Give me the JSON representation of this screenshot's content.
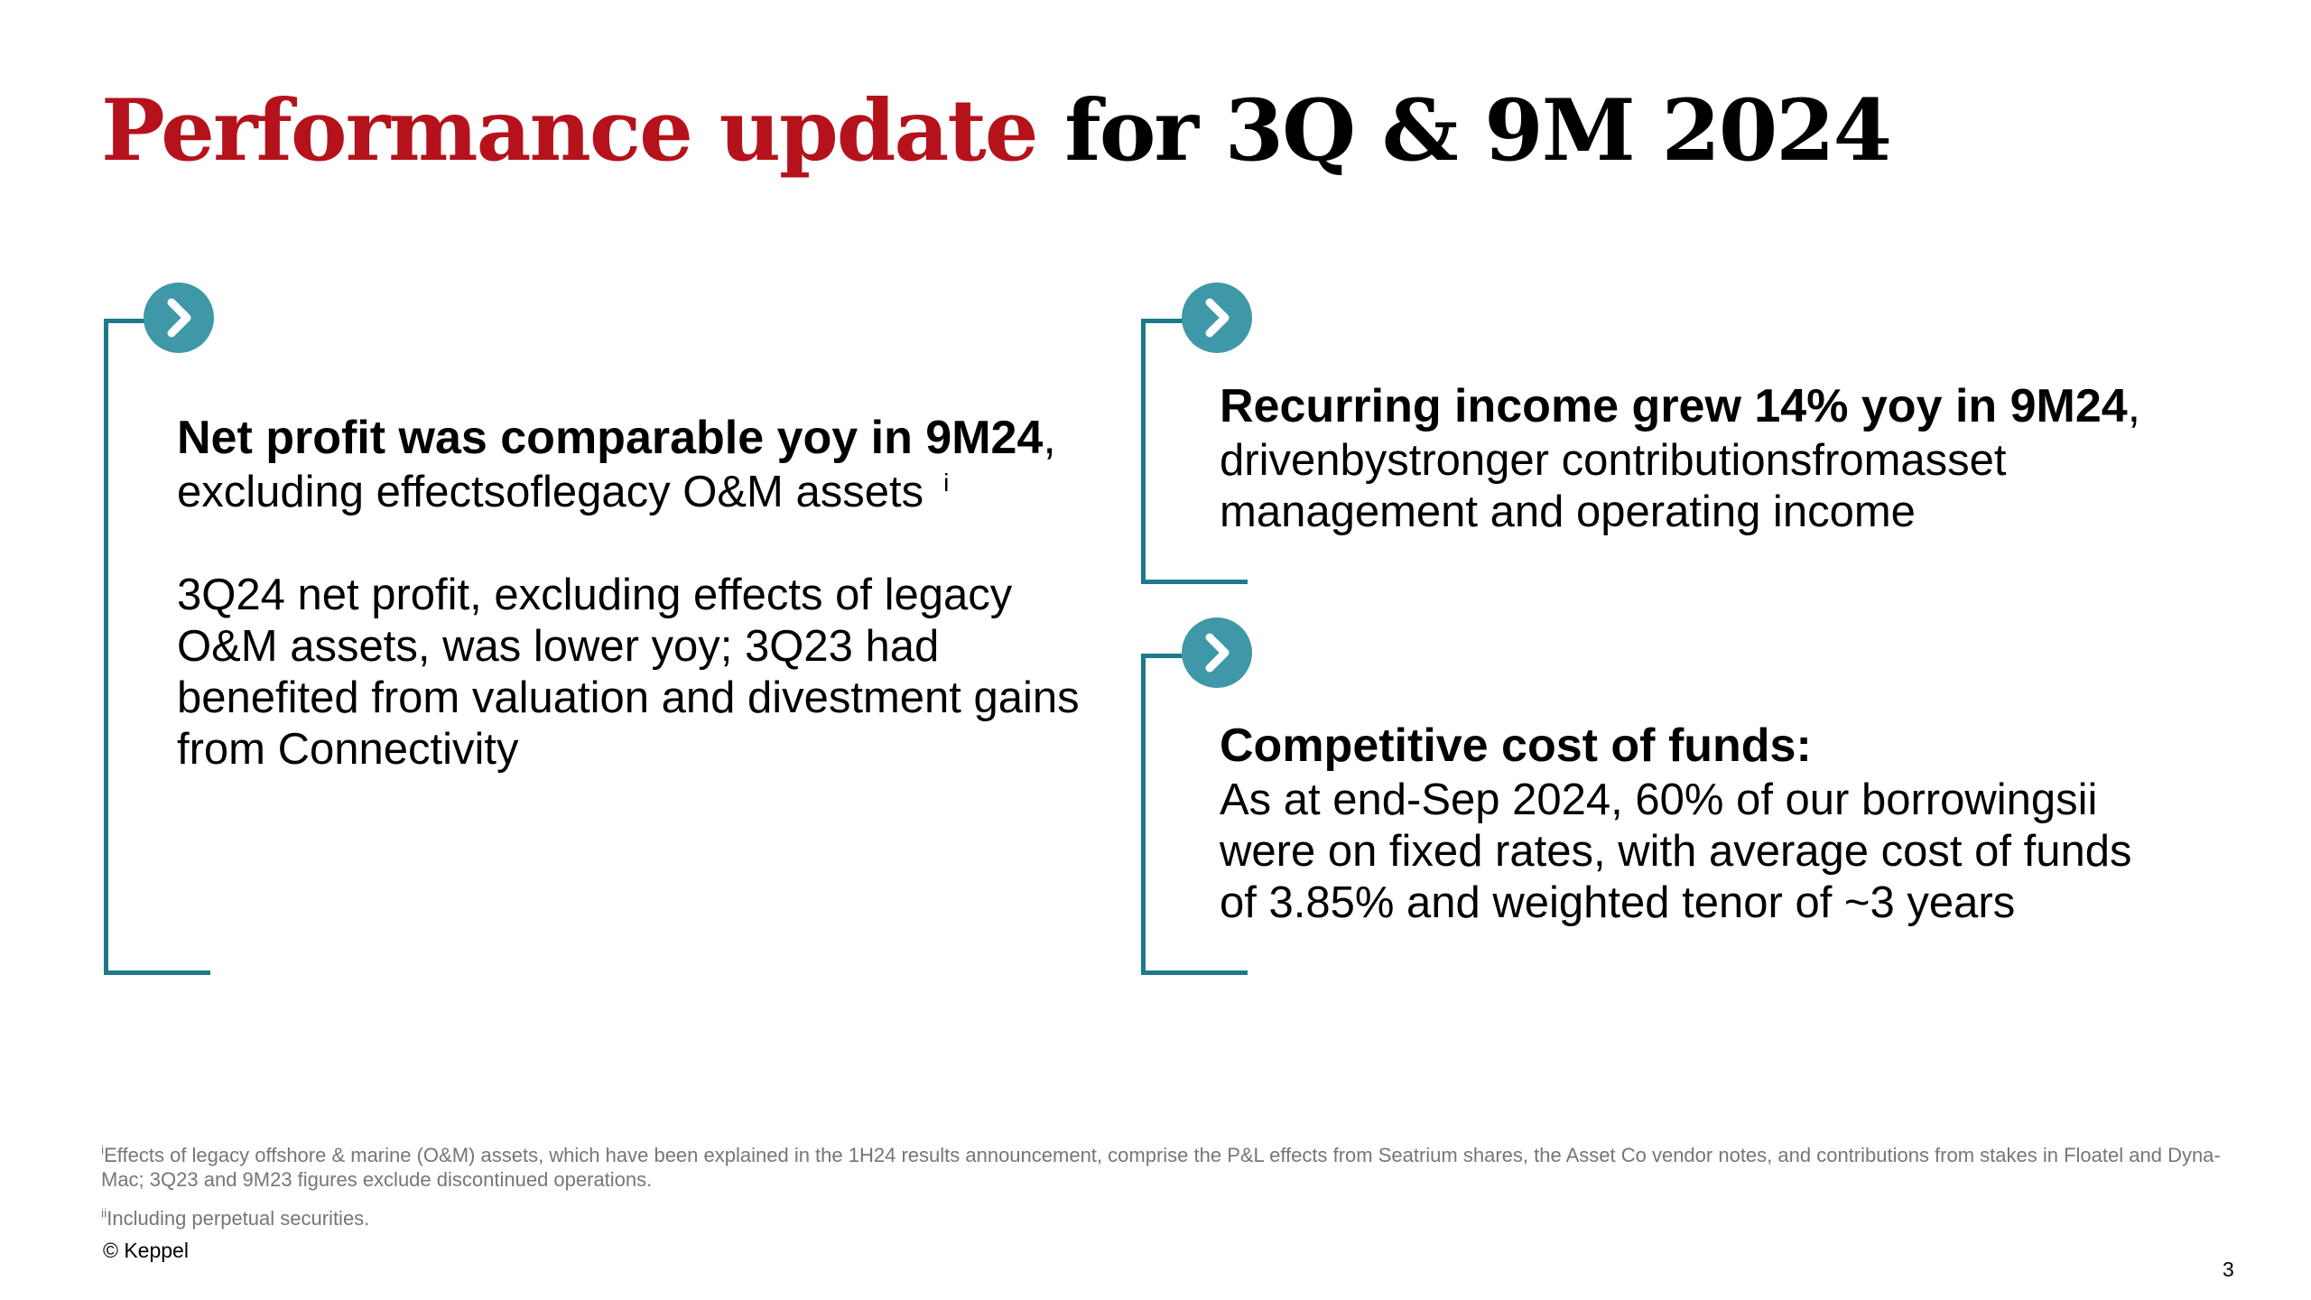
{
  "title": {
    "accent": "Performance update",
    "rest": "for 3Q & 9M 2024"
  },
  "colors": {
    "accent": "#b5121b",
    "bracket": "#1e7a8a",
    "chevron_circle": "#3f98a8",
    "footnote": "#767676"
  },
  "icons": {
    "chevron": "chevron-right-icon"
  },
  "left": {
    "headline": "Net profit was comparable yoy in 9M24",
    "headline_punct": ",",
    "sub": "excluding effectsoflegacy O&M assets",
    "sub_ref": "i",
    "para": "3Q24 net profit, excluding effects of legacy O&M assets, was lower yoy; 3Q23 had benefited from valuation and divestment gains from Connectivity"
  },
  "right_top": {
    "headline": "Recurring income grew 14% yoy in 9M24",
    "headline_punct": ",",
    "body": "drivenbystronger contributionsfromasset management and operating income"
  },
  "right_bottom": {
    "headline": "Competitive cost of funds:",
    "body": "As at end-Sep 2024, 60% of our borrowingsii were on fixed rates, with average cost of funds of 3.85% and weighted tenor of ~3 years"
  },
  "footnotes": {
    "note1_marker": "i",
    "note1": "Effects of legacy offshore & marine (O&M) assets, which have been explained in the 1H24 results announcement, comprise the P&L effects from Seatrium shares, the Asset Co vendor notes, and contributions from stakes in Floatel and Dyna-Mac; 3Q23 and 9M23 figures exclude discontinued operations.",
    "note2_marker": "ii",
    "note2": "Including perpetual securities."
  },
  "copyright": "© Keppel",
  "page_number": "3"
}
